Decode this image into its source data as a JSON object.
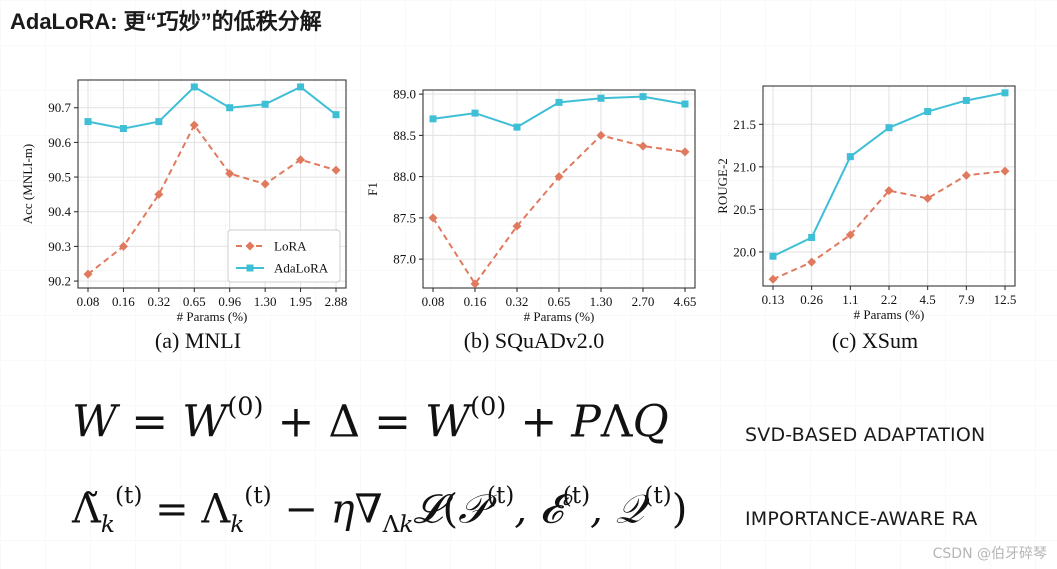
{
  "header": {
    "title": "AdaLoRA: 更“巧妙”的低秩分解"
  },
  "captions": [
    "(a) MNLI",
    "(b) SQuADv2.0",
    "(c) XSum"
  ],
  "equations": {
    "eq1_label": "SVD-BASED ADAPTATION",
    "eq2_label": "IMPORTANCE-AWARE RA"
  },
  "watermark": "CSDN @伯牙碎琴",
  "colors": {
    "lora": "#e07a5f",
    "adalora": "#3fbfd6"
  },
  "chart_data": [
    {
      "type": "line",
      "caption": "(a) MNLI",
      "xlabel": "# Params (%)",
      "ylabel": "Acc (MNLI-m)",
      "categories": [
        "0.08",
        "0.16",
        "0.32",
        "0.65",
        "0.96",
        "1.30",
        "1.95",
        "2.88"
      ],
      "ylim": [
        90.18,
        90.78
      ],
      "yticks": [
        "90.2",
        "90.3",
        "90.4",
        "90.5",
        "90.6",
        "90.7"
      ],
      "ytick_values": [
        90.2,
        90.3,
        90.4,
        90.5,
        90.6,
        90.7
      ],
      "legend": "bottom-right",
      "series": [
        {
          "name": "LoRA",
          "values": [
            90.22,
            90.3,
            90.45,
            90.65,
            90.51,
            90.48,
            90.55,
            90.52
          ]
        },
        {
          "name": "AdaLoRA",
          "values": [
            90.66,
            90.64,
            90.66,
            90.76,
            90.7,
            90.71,
            90.76,
            90.68
          ]
        }
      ]
    },
    {
      "type": "line",
      "caption": "(b) SQuADv2.0",
      "xlabel": "# Params (%)",
      "ylabel": "F1",
      "categories": [
        "0.08",
        "0.16",
        "0.32",
        "0.65",
        "1.30",
        "2.70",
        "4.65"
      ],
      "ylim": [
        86.65,
        89.05
      ],
      "yticks": [
        "87.0",
        "87.5",
        "88.0",
        "88.5",
        "89.0"
      ],
      "ytick_values": [
        87.0,
        87.5,
        88.0,
        88.5,
        89.0
      ],
      "series": [
        {
          "name": "LoRA",
          "values": [
            87.5,
            86.7,
            87.4,
            88.0,
            88.5,
            88.37,
            88.3
          ]
        },
        {
          "name": "AdaLoRA",
          "values": [
            88.7,
            88.77,
            88.6,
            88.9,
            88.95,
            88.97,
            88.88
          ]
        }
      ]
    },
    {
      "type": "line",
      "caption": "(c) XSum",
      "xlabel": "# Params (%)",
      "ylabel": "ROUGE-2",
      "categories": [
        "0.13",
        "0.26",
        "1.1",
        "2.2",
        "4.5",
        "7.9",
        "12.5"
      ],
      "ylim": [
        19.6,
        21.95
      ],
      "yticks": [
        "20.0",
        "20.5",
        "21.0",
        "21.5"
      ],
      "ytick_values": [
        20.0,
        20.5,
        21.0,
        21.5
      ],
      "series": [
        {
          "name": "LoRA",
          "values": [
            19.68,
            19.88,
            20.2,
            20.72,
            20.63,
            20.9,
            20.95
          ]
        },
        {
          "name": "AdaLoRA",
          "values": [
            19.95,
            20.17,
            21.12,
            21.46,
            21.65,
            21.78,
            21.87
          ]
        }
      ]
    }
  ]
}
